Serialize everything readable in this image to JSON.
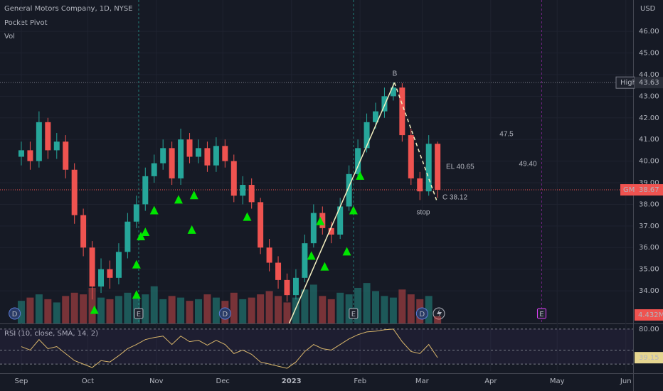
{
  "chart_data": {
    "type": "candlestick",
    "title": "General Motors Company, 1D, NYSE",
    "indicator_labels": [
      "Pocket Pivot",
      "Vol"
    ],
    "currency": "USD",
    "x": [
      0,
      4,
      8,
      12,
      16,
      20,
      24,
      28,
      32,
      36,
      40,
      44,
      48,
      52,
      56,
      60,
      64,
      68,
      72,
      76,
      80,
      84,
      88,
      92,
      96,
      100,
      104,
      108,
      112,
      116,
      120,
      124,
      128,
      132,
      136,
      140,
      144,
      148,
      152,
      156,
      160,
      164,
      168,
      172,
      176,
      180,
      184,
      188
    ],
    "open": [
      40.2,
      40.5,
      40.0,
      41.8,
      40.5,
      40.9,
      39.6,
      37.5,
      36.0,
      34.2,
      35.0,
      34.6,
      35.8,
      37.2,
      38.0,
      39.3,
      39.9,
      40.6,
      39.2,
      41.0,
      40.2,
      40.6,
      39.8,
      40.7,
      40.0,
      38.4,
      38.9,
      38.1,
      36.0,
      35.3,
      34.5,
      33.8,
      34.6,
      36.2,
      37.6,
      36.9,
      36.6,
      37.9,
      39.4,
      40.6,
      41.8,
      42.3,
      43.0,
      43.4,
      41.2,
      39.2,
      38.6,
      40.8
    ],
    "high": [
      40.9,
      40.9,
      42.3,
      42.0,
      41.3,
      41.2,
      39.9,
      37.8,
      36.3,
      35.5,
      35.4,
      36.2,
      37.6,
      38.4,
      39.7,
      40.3,
      41.0,
      40.9,
      41.5,
      41.3,
      41.0,
      40.9,
      41.1,
      41.0,
      40.3,
      39.3,
      39.2,
      38.3,
      36.4,
      35.6,
      34.8,
      35.0,
      36.6,
      38.0,
      37.9,
      37.2,
      38.3,
      39.8,
      41.0,
      42.2,
      42.7,
      43.4,
      43.63,
      43.6,
      41.5,
      39.5,
      41.2,
      40.9
    ],
    "low": [
      39.8,
      39.6,
      39.7,
      40.1,
      40.1,
      39.2,
      37.1,
      35.6,
      33.6,
      33.9,
      34.1,
      34.3,
      35.5,
      36.9,
      37.7,
      39.0,
      39.6,
      38.9,
      38.9,
      39.9,
      39.9,
      39.5,
      39.5,
      39.7,
      38.1,
      38.0,
      37.8,
      35.7,
      34.9,
      34.1,
      33.5,
      33.6,
      34.4,
      36.0,
      36.6,
      36.2,
      36.4,
      37.7,
      39.2,
      40.4,
      41.5,
      42.0,
      42.8,
      40.9,
      38.9,
      38.2,
      38.4,
      38.3
    ],
    "close": [
      40.5,
      40.0,
      41.8,
      40.5,
      40.9,
      39.6,
      37.5,
      36.0,
      34.2,
      35.0,
      34.6,
      35.8,
      37.2,
      38.0,
      39.3,
      39.9,
      40.6,
      39.2,
      41.0,
      40.2,
      40.6,
      39.8,
      40.7,
      40.0,
      38.4,
      38.9,
      38.1,
      36.0,
      35.3,
      34.5,
      33.8,
      34.6,
      36.2,
      37.6,
      36.9,
      36.6,
      37.9,
      39.4,
      40.6,
      41.8,
      42.3,
      43.0,
      43.4,
      41.2,
      39.2,
      38.6,
      40.8,
      38.67
    ],
    "volume": [
      14,
      16,
      18,
      15,
      13,
      17,
      19,
      18,
      22,
      16,
      15,
      17,
      19,
      16,
      18,
      23,
      15,
      17,
      16,
      14,
      15,
      18,
      16,
      14,
      19,
      15,
      16,
      18,
      20,
      17,
      13,
      16,
      21,
      24,
      17,
      15,
      19,
      18,
      22,
      25,
      20,
      17,
      16,
      21,
      18,
      15,
      17,
      4.432
    ],
    "last_volume_label": "4.432M",
    "volume_ylim": [
      0,
      200
    ],
    "up_color": "#26a69a",
    "down_color": "#ef5350",
    "xlim": [
      -9.63,
      276.3
    ],
    "xticks": [
      {
        "value": 0,
        "label": "Sep"
      },
      {
        "value": 30,
        "label": "Oct"
      },
      {
        "value": 61,
        "label": "Nov"
      },
      {
        "value": 91,
        "label": "Dec"
      },
      {
        "value": 122,
        "label": "2023"
      },
      {
        "value": 153,
        "label": "Feb"
      },
      {
        "value": 181,
        "label": "Mar"
      },
      {
        "value": 212,
        "label": "Apr"
      },
      {
        "value": 242,
        "label": "May"
      },
      {
        "value": 273,
        "label": "Jun"
      }
    ],
    "ylim": [
      32.49,
      47.45
    ],
    "yticks": [
      {
        "value": 34,
        "label": "34.00"
      },
      {
        "value": 35,
        "label": "35.00"
      },
      {
        "value": 36,
        "label": "36.00"
      },
      {
        "value": 37,
        "label": "37.00"
      },
      {
        "value": 38,
        "label": "38.00"
      },
      {
        "value": 39,
        "label": "39.00"
      },
      {
        "value": 40,
        "label": "40.00"
      },
      {
        "value": 41,
        "label": "41.00"
      },
      {
        "value": 42,
        "label": "42.00"
      },
      {
        "value": 43,
        "label": "43.00"
      },
      {
        "value": 44,
        "label": "44.00"
      },
      {
        "value": 45,
        "label": "45.00"
      },
      {
        "value": 46,
        "label": "46.00"
      }
    ],
    "high_label": "High",
    "symbol": "GM",
    "pocket_pivots": {
      "color": "#00e600",
      "x": [
        33,
        52,
        52,
        54,
        56,
        60,
        71,
        78,
        77,
        102,
        131,
        135,
        137,
        147,
        150,
        153
      ],
      "y": [
        33.1,
        33.8,
        35.2,
        36.5,
        36.7,
        37.7,
        38.2,
        38.4,
        36.8,
        37.4,
        35.6,
        37.2,
        35.1,
        35.8,
        37.7,
        39.3
      ]
    },
    "drawing": {
      "color": "#f3efc0",
      "x": [
        121,
        168.5,
        187.5
      ],
      "y": [
        32.5,
        43.63,
        38.2
      ]
    },
    "annotations": [
      "B",
      "EL 40.65",
      "C 38.12",
      "stop",
      "47.5",
      "49.40"
    ],
    "events": [
      {
        "x": -3,
        "label": "D"
      },
      {
        "x": 53,
        "label": "E"
      },
      {
        "x": 92,
        "label": "D"
      },
      {
        "x": 150,
        "label": "E"
      },
      {
        "x": 181,
        "label": "D"
      },
      {
        "x": 235,
        "label": "E"
      }
    ],
    "rsi": {
      "label": "RSI (10, close, SMA, 14, 2)",
      "color": "#d9b66b",
      "values": [
        55,
        50,
        65,
        52,
        55,
        45,
        35,
        30,
        25,
        35,
        33,
        42,
        52,
        58,
        65,
        68,
        70,
        58,
        70,
        62,
        64,
        57,
        64,
        58,
        45,
        50,
        44,
        33,
        30,
        27,
        24,
        33,
        48,
        58,
        52,
        50,
        58,
        66,
        72,
        76,
        77,
        79,
        80,
        62,
        48,
        45,
        58,
        39.15
      ],
      "ylim": [
        20,
        86
      ],
      "yticks": [
        {
          "value": 80,
          "label": "80.00"
        }
      ],
      "levels": [
        80,
        50,
        30
      ]
    }
  }
}
